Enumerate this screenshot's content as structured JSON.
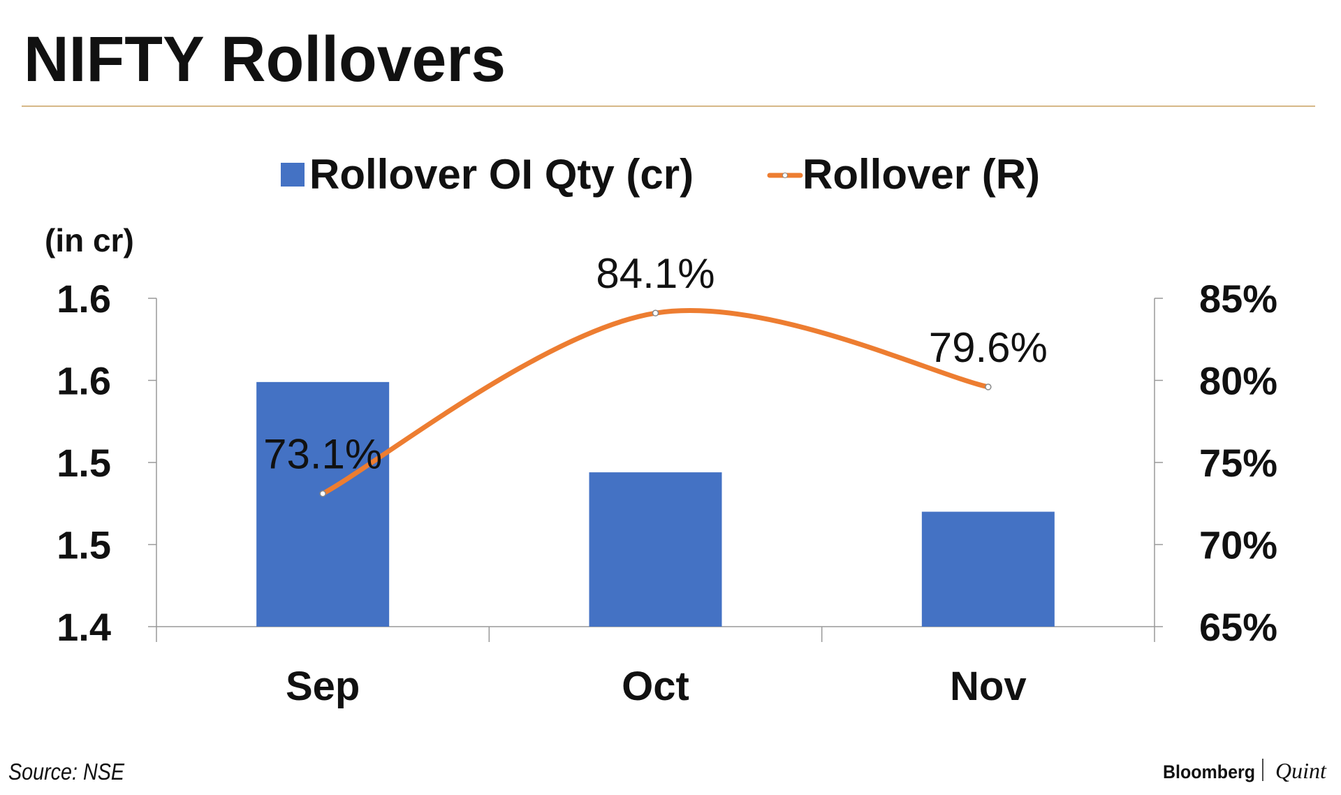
{
  "chart_data": {
    "type": "bar-line",
    "title": "NIFTY Rollovers",
    "y_axis_label": "(in cr)",
    "categories": [
      "Sep",
      "Oct",
      "Nov"
    ],
    "series": [
      {
        "name": "Rollover OI Qty (cr)",
        "type": "bar",
        "color": "#4472c4",
        "values": [
          1.549,
          1.494,
          1.47
        ]
      },
      {
        "name": "Rollover (R)",
        "type": "line",
        "axis": "y2",
        "color": "#ed7d31",
        "values": [
          73.1,
          84.1,
          79.6
        ],
        "value_labels": [
          "73.1%",
          "84.1%",
          "79.6%"
        ]
      }
    ],
    "ylim": [
      1.4,
      1.6
    ],
    "yticks": [
      1.6,
      {
        "value": 1.55,
        "label": "1.6"
      },
      1.5,
      {
        "value": 1.45,
        "label": "1.5"
      },
      1.4
    ],
    "y2lim": [
      65,
      85
    ],
    "y2ticks": [
      {
        "value": 65,
        "label": "65%"
      },
      {
        "value": 70,
        "label": "70%"
      },
      {
        "value": 75,
        "label": "75%"
      },
      {
        "value": 80,
        "label": "80%"
      },
      {
        "value": 85,
        "label": "85%"
      }
    ],
    "source": "Source: NSE",
    "brand": [
      "Bloomberg",
      "Quint"
    ]
  }
}
